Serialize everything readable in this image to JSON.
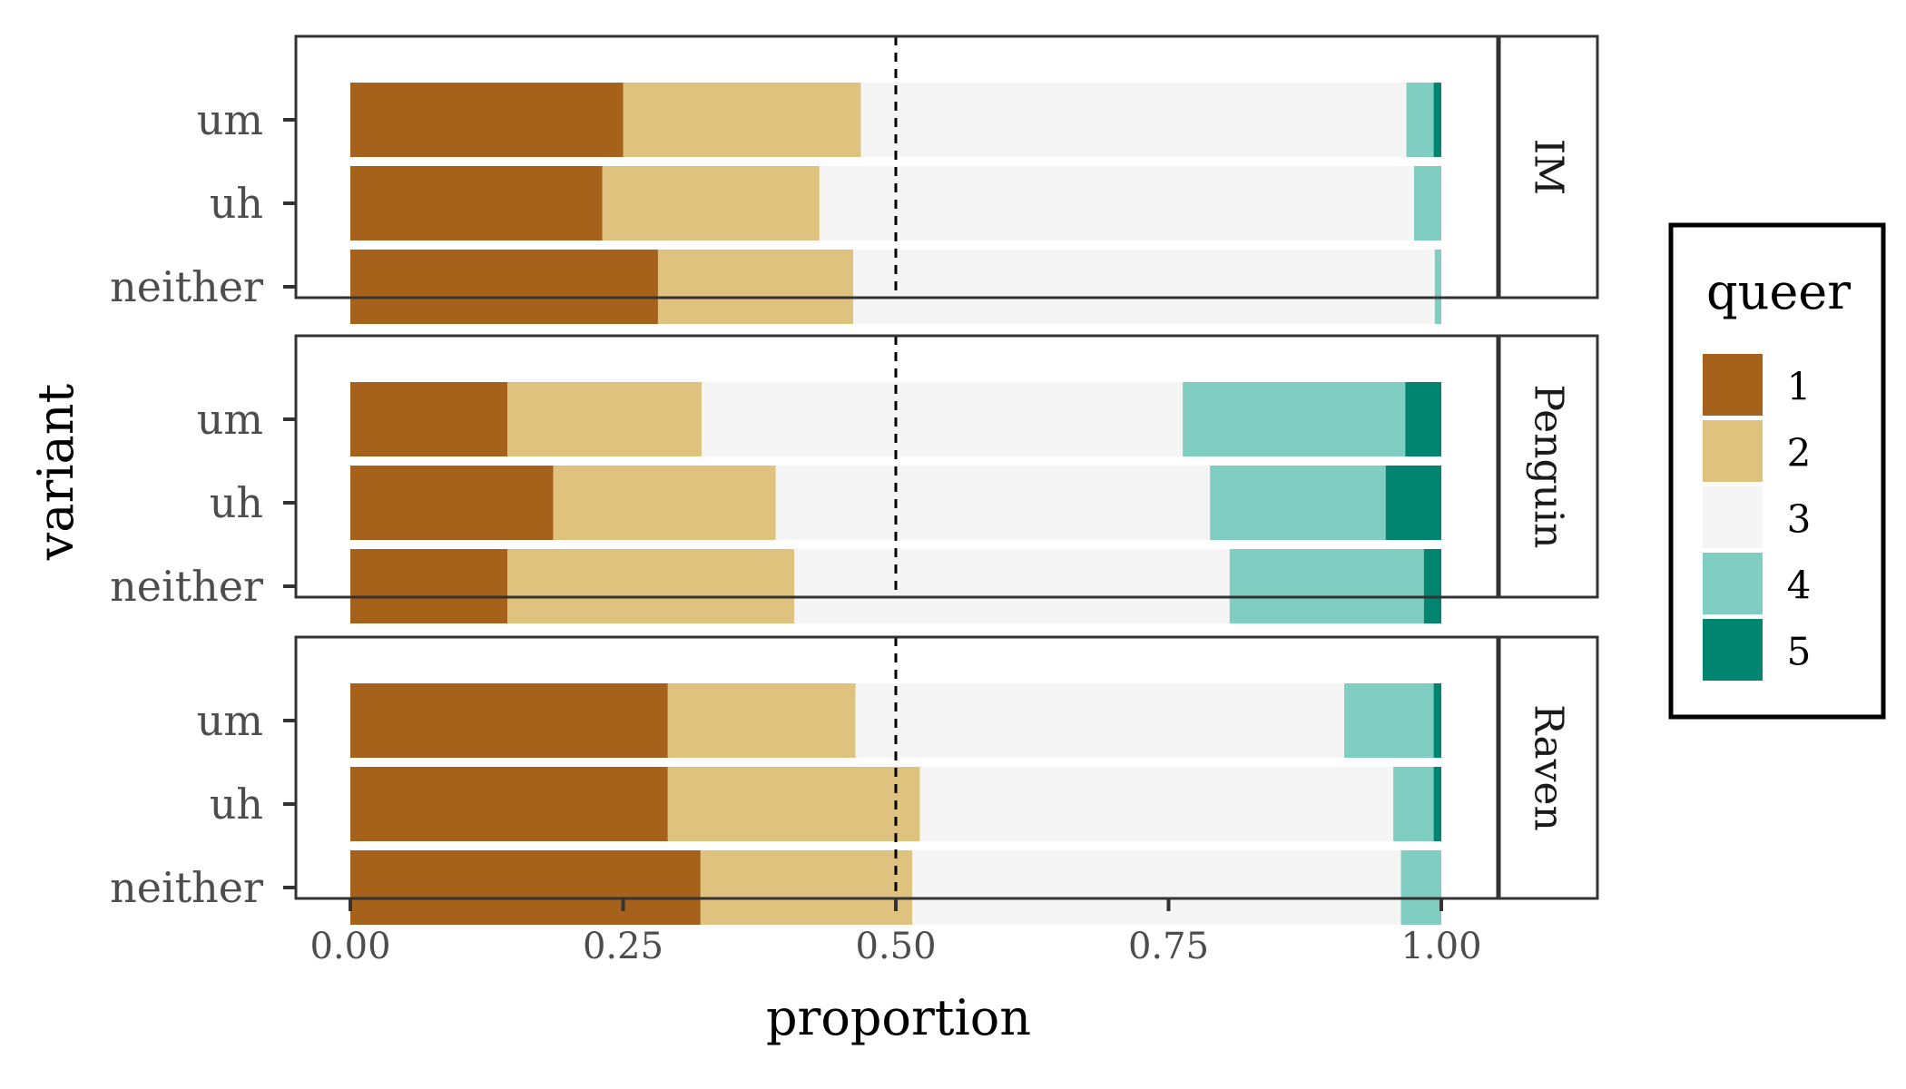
{
  "chart_data": {
    "type": "bar",
    "orientation": "horizontal",
    "stacked": true,
    "normalized": true,
    "xlabel": "proportion",
    "ylabel": "variant",
    "xlim": [
      -0.05,
      1.14
    ],
    "x_ticks": [
      0,
      0.25,
      0.5,
      0.75,
      1
    ],
    "x_tick_labels": [
      "0.00",
      "0.25",
      "0.50",
      "0.75",
      "1.00"
    ],
    "reference_line": {
      "x": 0.5,
      "style": "dashed"
    },
    "grid": false,
    "legend": {
      "title": "queer",
      "placement": "right",
      "levels": [
        "1",
        "2",
        "3",
        "4",
        "5"
      ],
      "colors": [
        "#A6611A",
        "#DFC27D",
        "#F5F5F5",
        "#80CDC1",
        "#018571"
      ]
    },
    "categories": [
      "um",
      "uh",
      "neither"
    ],
    "facets": [
      {
        "label": "IM",
        "bars": [
          {
            "variant": "um",
            "values": [
              0.25,
              0.218,
              0.5,
              0.025,
              0.007
            ]
          },
          {
            "variant": "uh",
            "values": [
              0.231,
              0.199,
              0.545,
              0.025,
              0.0
            ]
          },
          {
            "variant": "neither",
            "values": [
              0.282,
              0.179,
              0.533,
              0.006,
              0.0
            ]
          }
        ]
      },
      {
        "label": "Penguin",
        "bars": [
          {
            "variant": "um",
            "values": [
              0.144,
              0.178,
              0.441,
              0.204,
              0.033
            ]
          },
          {
            "variant": "uh",
            "values": [
              0.186,
              0.204,
              0.398,
              0.161,
              0.051
            ]
          },
          {
            "variant": "neither",
            "values": [
              0.144,
              0.263,
              0.399,
              0.178,
              0.016
            ]
          }
        ]
      },
      {
        "label": "Raven",
        "bars": [
          {
            "variant": "um",
            "values": [
              0.291,
              0.172,
              0.448,
              0.082,
              0.007
            ]
          },
          {
            "variant": "uh",
            "values": [
              0.291,
              0.231,
              0.434,
              0.037,
              0.007
            ]
          },
          {
            "variant": "neither",
            "values": [
              0.321,
              0.194,
              0.448,
              0.037,
              0.0
            ]
          }
        ]
      }
    ]
  }
}
